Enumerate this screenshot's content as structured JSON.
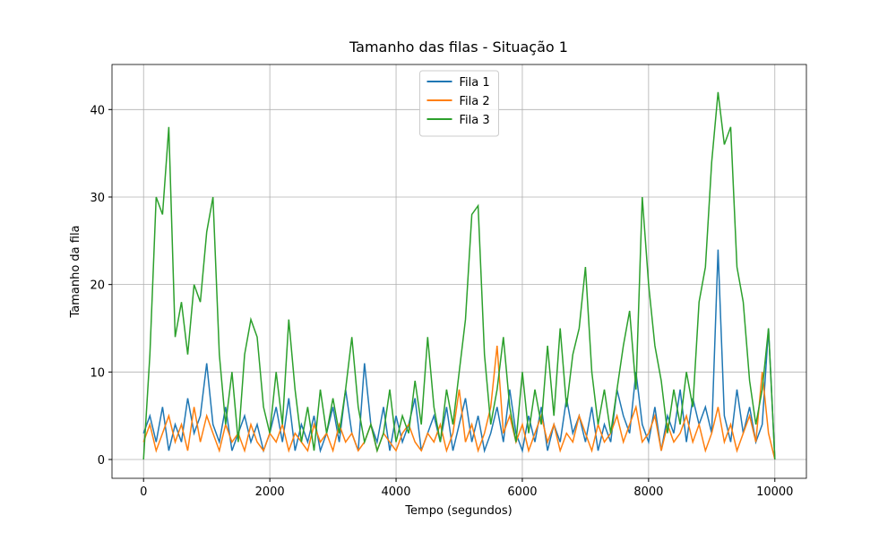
{
  "chart_data": {
    "type": "line",
    "title": "Tamanho das filas - Situação 1",
    "x_label": "Tempo (segundos)",
    "y_label": "Tamanho da fila",
    "x": [
      0,
      100,
      200,
      300,
      400,
      500,
      600,
      700,
      800,
      900,
      1000,
      1100,
      1200,
      1300,
      1400,
      1500,
      1600,
      1700,
      1800,
      1900,
      2000,
      2100,
      2200,
      2300,
      2400,
      2500,
      2600,
      2700,
      2800,
      2900,
      3000,
      3100,
      3200,
      3300,
      3400,
      3500,
      3600,
      3700,
      3800,
      3900,
      4000,
      4100,
      4200,
      4300,
      4400,
      4500,
      4600,
      4700,
      4800,
      4900,
      5000,
      5100,
      5200,
      5300,
      5400,
      5500,
      5600,
      5700,
      5800,
      5900,
      6000,
      6100,
      6200,
      6300,
      6400,
      6500,
      6600,
      6700,
      6800,
      6900,
      7000,
      7100,
      7200,
      7300,
      7400,
      7500,
      7600,
      7700,
      7800,
      7900,
      8000,
      8100,
      8200,
      8300,
      8400,
      8500,
      8600,
      8700,
      8800,
      8900,
      9000,
      9100,
      9200,
      9300,
      9400,
      9500,
      9600,
      9700,
      9800,
      9900,
      10000
    ],
    "series": [
      {
        "name": "Fila 1",
        "color": "#1f77b4",
        "values": [
          3,
          5,
          2,
          6,
          1,
          4,
          2,
          7,
          3,
          5,
          11,
          4,
          2,
          6,
          1,
          3,
          5,
          2,
          4,
          1,
          3,
          6,
          2,
          7,
          1,
          4,
          2,
          5,
          1,
          3,
          6,
          2,
          8,
          3,
          1,
          11,
          4,
          2,
          6,
          1,
          5,
          2,
          4,
          7,
          1,
          3,
          5,
          2,
          6,
          1,
          4,
          7,
          2,
          5,
          1,
          3,
          6,
          2,
          8,
          3,
          1,
          5,
          2,
          6,
          1,
          4,
          2,
          7,
          3,
          5,
          2,
          6,
          1,
          4,
          2,
          8,
          5,
          3,
          10,
          4,
          2,
          6,
          1,
          5,
          3,
          8,
          2,
          7,
          4,
          6,
          3,
          24,
          5,
          2,
          8,
          3,
          6,
          2,
          4,
          15,
          0
        ]
      },
      {
        "name": "Fila 2",
        "color": "#ff7f0e",
        "values": [
          2,
          4,
          1,
          3,
          5,
          2,
          4,
          1,
          6,
          2,
          5,
          3,
          1,
          4,
          2,
          3,
          1,
          4,
          2,
          1,
          3,
          2,
          4,
          1,
          3,
          2,
          1,
          4,
          2,
          3,
          1,
          4,
          2,
          3,
          1,
          2,
          4,
          1,
          3,
          2,
          1,
          3,
          4,
          2,
          1,
          3,
          2,
          4,
          1,
          3,
          8,
          2,
          4,
          1,
          3,
          6,
          13,
          3,
          5,
          2,
          4,
          1,
          3,
          5,
          2,
          4,
          1,
          3,
          2,
          5,
          3,
          1,
          4,
          2,
          3,
          5,
          2,
          4,
          6,
          2,
          3,
          5,
          1,
          4,
          2,
          3,
          5,
          2,
          4,
          1,
          3,
          6,
          2,
          4,
          1,
          3,
          5,
          2,
          10,
          3,
          0
        ]
      },
      {
        "name": "Fila 3",
        "color": "#2ca02c",
        "values": [
          0,
          12,
          30,
          28,
          38,
          14,
          18,
          12,
          20,
          18,
          26,
          30,
          12,
          4,
          10,
          2,
          12,
          16,
          14,
          6,
          3,
          10,
          4,
          16,
          8,
          2,
          6,
          1,
          8,
          3,
          7,
          3,
          8,
          14,
          6,
          2,
          4,
          1,
          3,
          8,
          2,
          5,
          3,
          9,
          4,
          14,
          6,
          2,
          8,
          4,
          10,
          16,
          28,
          29,
          12,
          4,
          8,
          14,
          6,
          2,
          10,
          3,
          8,
          4,
          13,
          5,
          15,
          6,
          12,
          15,
          22,
          10,
          4,
          8,
          3,
          8,
          13,
          17,
          8,
          30,
          20,
          13,
          9,
          3,
          8,
          4,
          10,
          6,
          18,
          22,
          34,
          42,
          36,
          38,
          22,
          18,
          9,
          4,
          8,
          15,
          0
        ]
      }
    ],
    "xlim": [
      -500,
      10500
    ],
    "ylim": [
      -2.15,
      45.15
    ],
    "xticks": [
      0,
      2000,
      4000,
      6000,
      8000,
      10000
    ],
    "yticks": [
      0,
      10,
      20,
      30,
      40
    ],
    "grid": true,
    "legend": "upper center"
  }
}
